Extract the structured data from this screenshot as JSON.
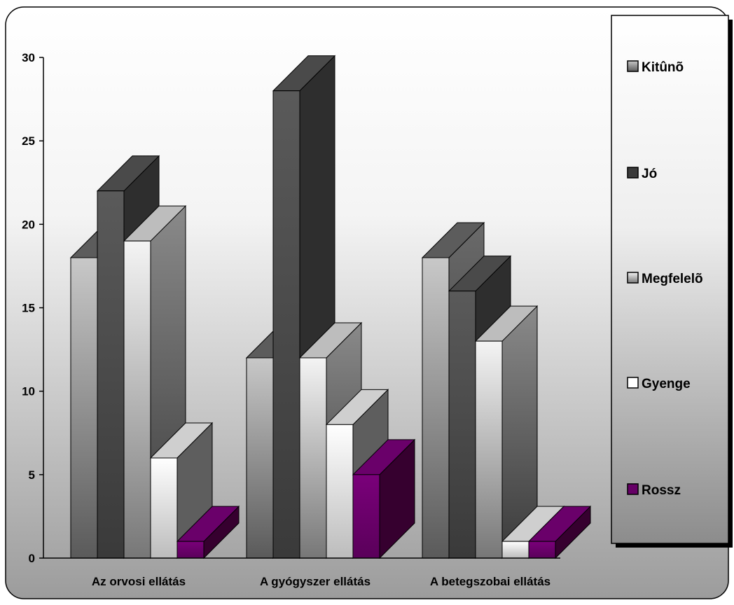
{
  "chart_data": {
    "type": "bar",
    "style": "3d-clustered-column",
    "categories": [
      "Az orvosi ellátás",
      "A gyógyszer ellátás",
      "A betegszobai ellátás"
    ],
    "series": [
      {
        "name": "Kitûnõ",
        "values": [
          18,
          12,
          18
        ],
        "color": "#9a9a9a"
      },
      {
        "name": "Jó",
        "values": [
          22,
          28,
          16
        ],
        "color": "#3a3a3a"
      },
      {
        "name": "Megfelelõ",
        "values": [
          19,
          12,
          13
        ],
        "color": "#d8d8d8"
      },
      {
        "name": "Gyenge",
        "values": [
          6,
          8,
          1
        ],
        "color": "#ffffff"
      },
      {
        "name": "Rossz",
        "values": [
          1,
          5,
          1
        ],
        "color": "#660066"
      }
    ],
    "ylim": [
      0,
      30
    ],
    "yticks": [
      "0",
      "5",
      "10",
      "15",
      "20",
      "25",
      "30"
    ],
    "legend_position": "right",
    "grid": false
  }
}
